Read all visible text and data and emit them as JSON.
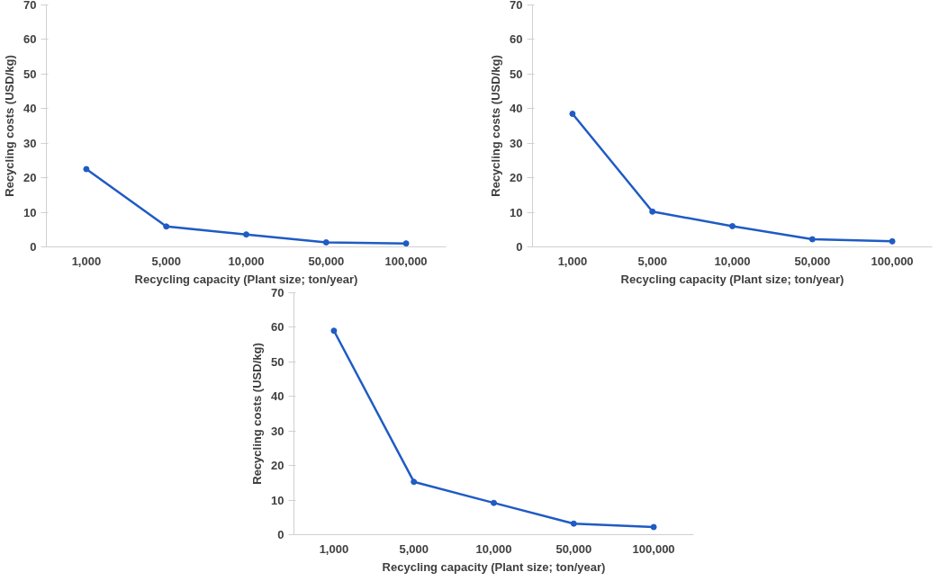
{
  "chart_data": [
    {
      "type": "line",
      "xlabel": "Recycling capacity (Plant size; ton/year)",
      "ylabel": "Recycling costs (USD/kg)",
      "categories": [
        "1,000",
        "5,000",
        "10,000",
        "50,000",
        "100,000"
      ],
      "series": [
        {
          "color": "#1f5bc4",
          "values": [
            22.5,
            5.9,
            3.6,
            1.3,
            1.0
          ]
        }
      ],
      "ylim": [
        0,
        70
      ],
      "yticks": [
        0,
        10,
        20,
        30,
        40,
        50,
        60,
        70
      ],
      "grid": false,
      "marker": "circle",
      "line_style": "solid"
    },
    {
      "type": "line",
      "xlabel": "Recycling capacity (Plant size; ton/year)",
      "ylabel": "Recycling costs (USD/kg)",
      "categories": [
        "1,000",
        "5,000",
        "10,000",
        "50,000",
        "100,000"
      ],
      "series": [
        {
          "color": "#1f5bc4",
          "values": [
            38.5,
            10.2,
            6.0,
            2.2,
            1.6
          ]
        }
      ],
      "ylim": [
        0,
        70
      ],
      "yticks": [
        0,
        10,
        20,
        30,
        40,
        50,
        60,
        70
      ],
      "grid": false,
      "marker": "circle",
      "line_style": "solid"
    },
    {
      "type": "line",
      "xlabel": "Recycling capacity (Plant size; ton/year)",
      "ylabel": "Recycling costs (USD/kg)",
      "categories": [
        "1,000",
        "5,000",
        "10,000",
        "50,000",
        "100,000"
      ],
      "series": [
        {
          "color": "#1f5bc4",
          "values": [
            59,
            15.3,
            9.2,
            3.2,
            2.2
          ]
        }
      ],
      "ylim": [
        0,
        70
      ],
      "yticks": [
        0,
        10,
        20,
        30,
        40,
        50,
        60,
        70
      ],
      "grid": false,
      "marker": "circle",
      "line_style": "solid"
    }
  ]
}
